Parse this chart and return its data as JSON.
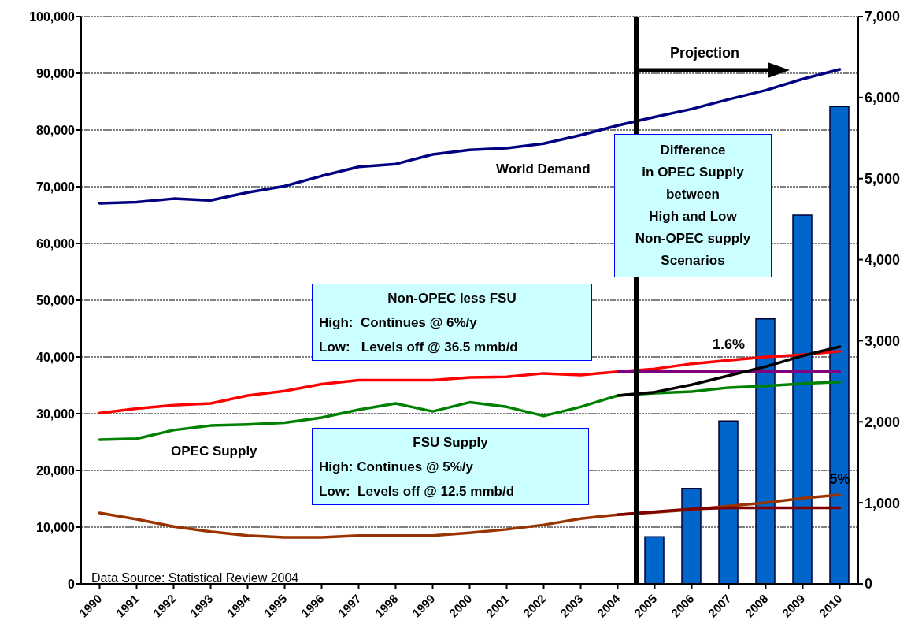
{
  "chart_data": {
    "type": "line",
    "categories": [
      "1990",
      "1991",
      "1992",
      "1993",
      "1994",
      "1995",
      "1996",
      "1997",
      "1998",
      "1999",
      "2000",
      "2001",
      "2002",
      "2003",
      "2004",
      "2005",
      "2006",
      "2007",
      "2008",
      "2009",
      "2010"
    ],
    "series": [
      {
        "name": "World Demand",
        "color": "#000080",
        "values": [
          67100,
          67300,
          67900,
          67600,
          69000,
          70100,
          71900,
          73500,
          74000,
          75700,
          76500,
          76800,
          77600,
          79100,
          80800,
          82300,
          83700,
          85400,
          87000,
          89000,
          90700
        ]
      },
      {
        "color": "#ff0000",
        "values": [
          30100,
          30900,
          31500,
          31800,
          33200,
          34000,
          35200,
          35900,
          35900,
          35900,
          36400,
          36500,
          37100,
          36800,
          37400,
          37900,
          38800,
          39400,
          40000,
          40400,
          41000
        ]
      },
      {
        "color": "#800080",
        "values": [
          null,
          null,
          null,
          null,
          null,
          null,
          null,
          null,
          null,
          null,
          null,
          null,
          null,
          null,
          37400,
          37400,
          37400,
          37400,
          37400,
          37400,
          37400
        ]
      },
      {
        "name": "OPEC Supply",
        "color": "#008000",
        "values": [
          25400,
          25600,
          27100,
          27900,
          28100,
          28400,
          29300,
          30700,
          31800,
          30400,
          32000,
          31200,
          29600,
          31200,
          33200,
          33600,
          33900,
          34600,
          34900,
          35300,
          35600
        ]
      },
      {
        "color": "#000000",
        "values": [
          null,
          null,
          null,
          null,
          null,
          null,
          null,
          null,
          null,
          null,
          null,
          null,
          null,
          null,
          33200,
          33800,
          35100,
          36700,
          38300,
          40200,
          41800
        ]
      },
      {
        "color": "#993300",
        "values": [
          12500,
          11400,
          10100,
          9200,
          8500,
          8200,
          8200,
          8500,
          8500,
          8500,
          9000,
          9600,
          10400,
          11500,
          12200,
          12600,
          13100,
          13700,
          14300,
          15100,
          15700
        ]
      },
      {
        "color": "#800000",
        "values": [
          null,
          null,
          null,
          null,
          null,
          null,
          null,
          null,
          null,
          null,
          null,
          null,
          null,
          null,
          12200,
          12700,
          13200,
          13400,
          13400,
          13400,
          13400
        ]
      },
      {
        "type": "bar",
        "axis": "y2",
        "color": "#0066cc",
        "values": [
          null,
          null,
          null,
          null,
          null,
          null,
          null,
          null,
          null,
          null,
          null,
          null,
          null,
          null,
          null,
          580,
          1180,
          2010,
          3270,
          4550,
          5890
        ]
      }
    ],
    "ylim": [
      0,
      100000
    ],
    "yticks": [
      0,
      {
        "value": 10000,
        "label": "10,000"
      },
      {
        "value": 20000,
        "label": "20,000"
      },
      {
        "value": 30000,
        "label": "30,000"
      },
      {
        "value": 40000,
        "label": "40,000"
      },
      {
        "value": 50000,
        "label": "50,000"
      },
      {
        "value": 60000,
        "label": "60,000"
      },
      {
        "value": 70000,
        "label": "70,000"
      },
      {
        "value": 80000,
        "label": "80,000"
      },
      {
        "value": 90000,
        "label": "90,000"
      },
      {
        "value": 100000,
        "label": "100,000"
      }
    ],
    "y2lim": [
      0,
      7000
    ],
    "y2ticks": [
      0,
      {
        "value": 1000,
        "label": "1,000"
      },
      {
        "value": 2000,
        "label": "2,000"
      },
      {
        "value": 3000,
        "label": "3,000"
      },
      {
        "value": 4000,
        "label": "4,000"
      },
      {
        "value": 5000,
        "label": "5,000"
      },
      {
        "value": 6000,
        "label": "6,000"
      },
      {
        "value": 7000,
        "label": "7,000"
      }
    ],
    "grid": "y",
    "marker": "none",
    "line_style": "solid",
    "ref_lines": [
      {
        "axis": "x",
        "value": "2005",
        "color": "#000000"
      }
    ],
    "annotations": [
      "Projection",
      {
        "text": "1.6%",
        "x": "2007",
        "y": 39400
      },
      {
        "text": "5%",
        "x": "2010",
        "y": 15700
      },
      "Difference\nin OPEC Supply\nbetween\nHigh and Low\nNon-OPEC supply\nScenarios",
      "Non-OPEC less FSU\nHigh:  Continues @ 6%/y\nLow:   Levels off @ 36.5 mmb/d",
      "FSU Supply\nHigh: Continues @ 5%/y\nLow:  Levels off @ 12.5 mmb/d",
      "Data Source: Statistical Review 2004"
    ]
  }
}
